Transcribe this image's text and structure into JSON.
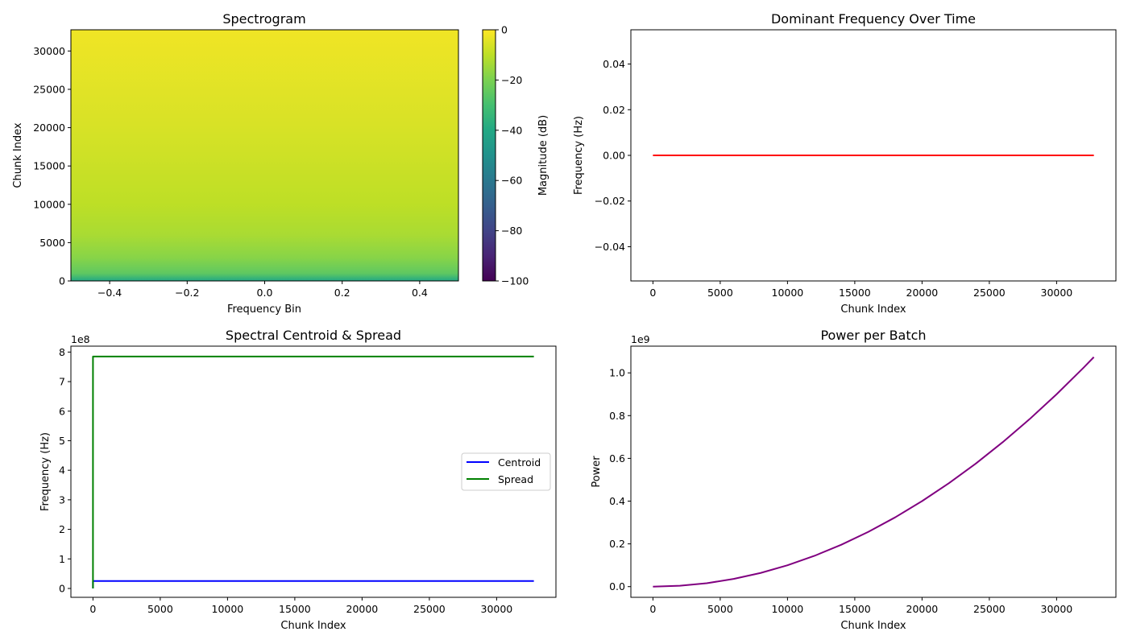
{
  "chart_data": [
    {
      "type": "heatmap",
      "title": "Spectrogram",
      "xlabel": "Frequency Bin",
      "ylabel": "Chunk Index",
      "xlim": [
        -0.5,
        0.5
      ],
      "ylim": [
        0,
        32768
      ],
      "xticks": [
        -0.4,
        -0.2,
        0.0,
        0.2,
        0.4
      ],
      "xticklabels": [
        "−0.4",
        "−0.2",
        "0.0",
        "0.2",
        "0.4"
      ],
      "yticks": [
        0,
        5000,
        10000,
        15000,
        20000,
        25000,
        30000
      ],
      "yticklabels": [
        "0",
        "5000",
        "10000",
        "15000",
        "20000",
        "25000",
        "30000"
      ],
      "colorbar": {
        "label": "Magnitude (dB)",
        "range": [
          -100,
          0
        ],
        "ticks": [
          0,
          -20,
          -40,
          -60,
          -80,
          -100
        ],
        "ticklabels": [
          "0",
          "−20",
          "−40",
          "−60",
          "−80",
          "−100"
        ],
        "colormap": "viridis"
      },
      "magnitude_by_chunk": [
        {
          "chunk": 0,
          "db": -40
        },
        {
          "chunk": 1000,
          "db": -25
        },
        {
          "chunk": 3000,
          "db": -18
        },
        {
          "chunk": 6000,
          "db": -13
        },
        {
          "chunk": 10000,
          "db": -10
        },
        {
          "chunk": 20000,
          "db": -6
        },
        {
          "chunk": 32768,
          "db": -2
        }
      ],
      "grid": false
    },
    {
      "type": "line",
      "title": "Dominant Frequency Over Time",
      "xlabel": "Chunk Index",
      "ylabel": "Frequency (Hz)",
      "xlim": [
        -1640,
        34408
      ],
      "ylim": [
        -0.055,
        0.055
      ],
      "xticks": [
        0,
        5000,
        10000,
        15000,
        20000,
        25000,
        30000
      ],
      "xticklabels": [
        "0",
        "5000",
        "10000",
        "15000",
        "20000",
        "25000",
        "30000"
      ],
      "yticks": [
        -0.04,
        -0.02,
        0.0,
        0.02,
        0.04
      ],
      "yticklabels": [
        "−0.04",
        "−0.02",
        "0.00",
        "0.02",
        "0.04"
      ],
      "series": [
        {
          "color": "#ff0000",
          "x": [
            0,
            32768
          ],
          "y": [
            0,
            0
          ]
        }
      ],
      "grid": false
    },
    {
      "type": "line",
      "title": "Spectral Centroid & Spread",
      "xlabel": "Chunk Index",
      "ylabel": "Frequency (Hz)",
      "offset_text": "1e8",
      "xlim": [
        -1640,
        34408
      ],
      "ylim": [
        -0.3,
        8.2
      ],
      "xticks": [
        0,
        5000,
        10000,
        15000,
        20000,
        25000,
        30000
      ],
      "xticklabels": [
        "0",
        "5000",
        "10000",
        "15000",
        "20000",
        "25000",
        "30000"
      ],
      "yticks": [
        0,
        1,
        2,
        3,
        4,
        5,
        6,
        7,
        8
      ],
      "yticklabels": [
        "0",
        "1",
        "2",
        "3",
        "4",
        "5",
        "6",
        "7",
        "8"
      ],
      "legend": {
        "location": "center-right",
        "entries": [
          "Centroid",
          "Spread"
        ]
      },
      "series": [
        {
          "name": "Centroid",
          "color": "#0000ff",
          "x": [
            0,
            1,
            32768
          ],
          "y": [
            0,
            0.25,
            0.25
          ]
        },
        {
          "name": "Spread",
          "color": "#008000",
          "x": [
            0,
            1,
            32768
          ],
          "y": [
            0,
            7.85,
            7.85
          ]
        }
      ],
      "grid": false
    },
    {
      "type": "line",
      "title": "Power per Batch",
      "xlabel": "Chunk Index",
      "ylabel": "Power",
      "offset_text": "1e9",
      "xlim": [
        -1640,
        34408
      ],
      "ylim": [
        -0.05,
        1.125
      ],
      "xticks": [
        0,
        5000,
        10000,
        15000,
        20000,
        25000,
        30000
      ],
      "xticklabels": [
        "0",
        "5000",
        "10000",
        "15000",
        "20000",
        "25000",
        "30000"
      ],
      "yticks": [
        0,
        0.2,
        0.4,
        0.6,
        0.8,
        1.0
      ],
      "yticklabels": [
        "0.0",
        "0.2",
        "0.4",
        "0.6",
        "0.8",
        "1.0"
      ],
      "series": [
        {
          "color": "#800080",
          "x": [
            0,
            2000,
            4000,
            6000,
            8000,
            10000,
            12000,
            14000,
            16000,
            18000,
            20000,
            22000,
            24000,
            26000,
            28000,
            30000,
            32000,
            32768
          ],
          "y": [
            0,
            0.004,
            0.016,
            0.036,
            0.064,
            0.1,
            0.144,
            0.196,
            0.256,
            0.324,
            0.4,
            0.484,
            0.576,
            0.676,
            0.784,
            0.9,
            1.024,
            1.0737
          ]
        }
      ],
      "grid": false
    }
  ]
}
